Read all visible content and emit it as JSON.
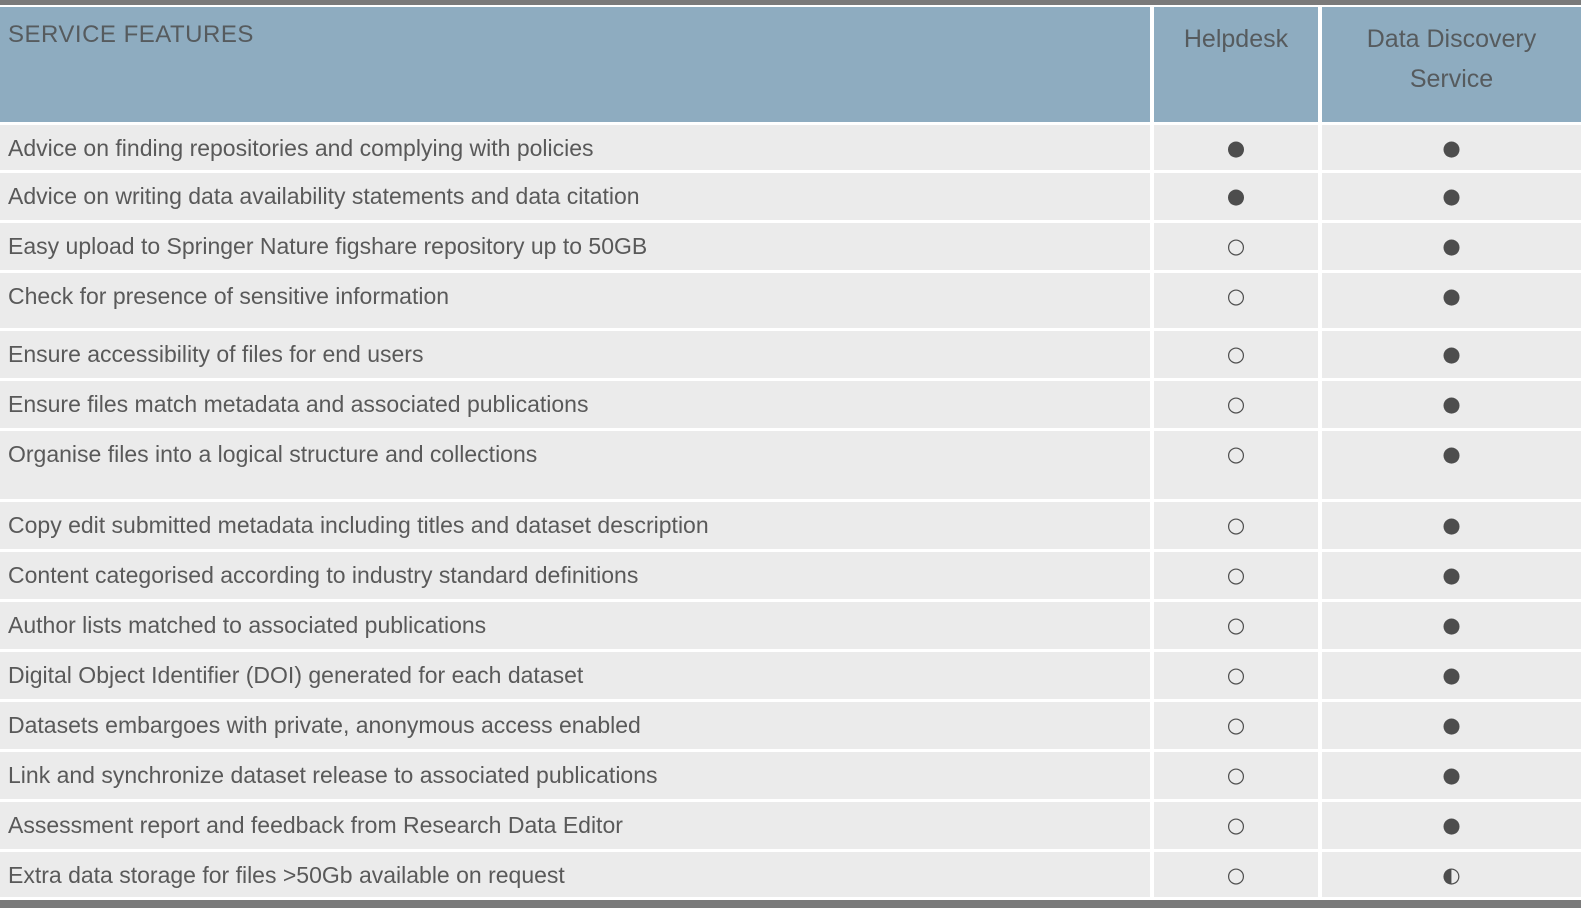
{
  "comparison_table": {
    "header": {
      "features_label": "SERVICE FEATURES",
      "col_helpdesk": "Helpdesk",
      "col_data_discovery": "Data Discovery Service"
    },
    "rows": [
      {
        "feature": "Advice on finding repositories and complying with policies",
        "helpdesk": "●",
        "data_discovery": "●"
      },
      {
        "feature": "Advice on writing data availability statements and data citation",
        "helpdesk": "●",
        "data_discovery": "●"
      },
      {
        "feature": "Easy upload to Springer Nature figshare repository up to 50GB",
        "helpdesk": "○",
        "data_discovery": "●"
      },
      {
        "feature": "Check for presence of sensitive information",
        "helpdesk": "○",
        "data_discovery": "●"
      },
      {
        "feature": "Ensure accessibility of files for end users",
        "helpdesk": "○",
        "data_discovery": "●"
      },
      {
        "feature": "Ensure files match metadata and associated publications",
        "helpdesk": "○",
        "data_discovery": "●"
      },
      {
        "feature": "Organise files into a logical structure and collections",
        "helpdesk": "○",
        "data_discovery": "●"
      },
      {
        "feature": "Copy edit submitted metadata including titles and dataset description",
        "helpdesk": "○",
        "data_discovery": "●"
      },
      {
        "feature": "Content categorised according to industry standard definitions",
        "helpdesk": "○",
        "data_discovery": "●"
      },
      {
        "feature": "Author lists matched to associated publications",
        "helpdesk": "○",
        "data_discovery": "●"
      },
      {
        "feature": "Digital Object Identifier (DOI) generated for each dataset",
        "helpdesk": "○",
        "data_discovery": "●"
      },
      {
        "feature": "Datasets embargoes with private, anonymous access enabled",
        "helpdesk": "○",
        "data_discovery": "●"
      },
      {
        "feature": "Link and synchronize dataset release to associated publications",
        "helpdesk": "○",
        "data_discovery": "●"
      },
      {
        "feature": "Assessment report and feedback from Research Data Editor",
        "helpdesk": "○",
        "data_discovery": "●"
      },
      {
        "feature": "Extra data storage for files >50Gb available on request",
        "helpdesk": "○",
        "data_discovery": "◐"
      }
    ],
    "colors": {
      "header_bg": "#8eacc0",
      "row_bg": "#ebebeb",
      "text": "#595959",
      "edge_bar": "#7a7a7a",
      "separator": "#ffffff"
    }
  }
}
